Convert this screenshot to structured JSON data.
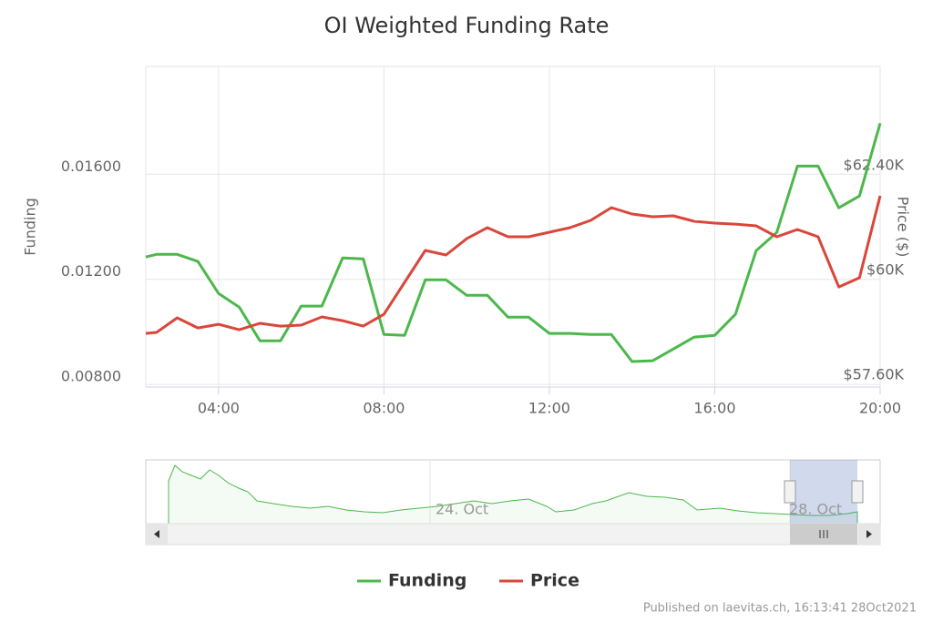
{
  "chart_data": {
    "type": "line",
    "title": "OI Weighted Funding Rate",
    "y_label": "Funding",
    "y2_label": "Price ($)",
    "x": [
      2.24,
      2.5,
      3,
      3.5,
      4,
      4.5,
      5,
      5.5,
      6,
      6.5,
      7,
      7.5,
      8,
      8.5,
      9,
      9.5,
      10,
      10.5,
      11,
      11.5,
      12,
      12.5,
      13,
      13.5,
      14,
      14.5,
      15,
      15.5,
      16,
      16.5,
      17,
      17.5,
      18,
      18.5,
      19,
      19.5,
      20
    ],
    "xlim": [
      2.24,
      20
    ],
    "xticks": [
      {
        "value": 4,
        "label": "04:00"
      },
      {
        "value": 8,
        "label": "08:00"
      },
      {
        "value": 12,
        "label": "12:00"
      },
      {
        "value": 16,
        "label": "16:00"
      },
      {
        "value": 20,
        "label": "20:00"
      }
    ],
    "ylim": [
      0.0079,
      0.0201
    ],
    "yticks": [
      {
        "value": 0.008,
        "label": "0.00800"
      },
      {
        "value": 0.012,
        "label": "0.01200"
      },
      {
        "value": 0.016,
        "label": "0.01600"
      }
    ],
    "y2lim": [
      57330,
      64675
    ],
    "y2ticks": [
      {
        "value": 57600,
        "label": "$57.60K"
      },
      {
        "value": 60000,
        "label": "$60K"
      },
      {
        "value": 62400,
        "label": "$62.40K"
      }
    ],
    "grid": true,
    "series": [
      {
        "name": "Funding",
        "color": "#4cb84c",
        "values": [
          0.01285,
          0.01295,
          0.01295,
          0.01268,
          0.01146,
          0.01094,
          0.00966,
          0.00966,
          0.01098,
          0.01098,
          0.01281,
          0.01278,
          0.0099,
          0.00987,
          0.01198,
          0.01198,
          0.01139,
          0.01139,
          0.01056,
          0.01056,
          0.00994,
          0.00994,
          0.0099,
          0.0099,
          0.00887,
          0.0089,
          0.00935,
          0.0098,
          0.00987,
          0.01067,
          0.01309,
          0.01378,
          0.01631,
          0.01631,
          0.01472,
          0.01517,
          0.01794
        ]
      },
      {
        "name": "Price",
        "color": "#d9473c",
        "axis": "y2",
        "values": [
          58560,
          58581,
          58915,
          58685,
          58768,
          58643,
          58790,
          58727,
          58748,
          58936,
          58852,
          58727,
          58998,
          59729,
          60459,
          60355,
          60730,
          60981,
          60772,
          60772,
          60877,
          60981,
          61148,
          61440,
          61294,
          61231,
          61252,
          61127,
          61085,
          61064,
          61023,
          60772,
          60939,
          60772,
          59624,
          59833,
          61711
        ]
      }
    ],
    "navigator": {
      "labels": [
        "24. Oct",
        "28. Oct"
      ]
    },
    "credit": "Published on laevitas.ch, 16:13:41 28Oct2021"
  }
}
